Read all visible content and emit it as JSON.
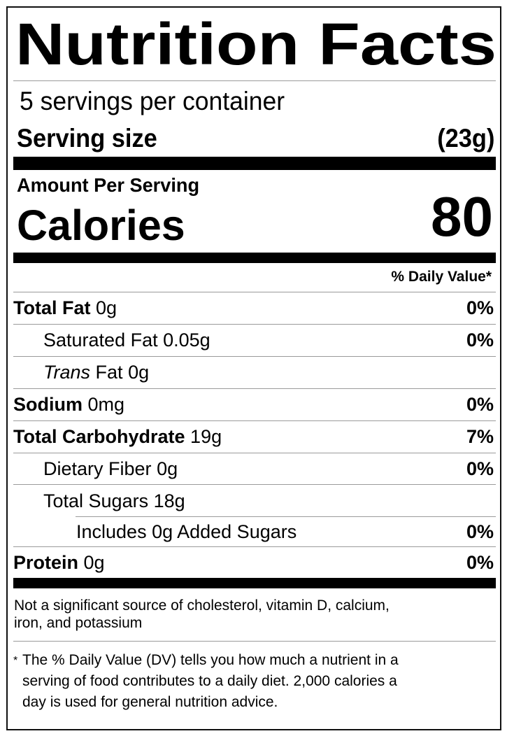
{
  "title": "Nutrition Facts",
  "servings_per_container": "5 servings per container",
  "serving_size": {
    "label": "Serving size",
    "value": "(23g)"
  },
  "amount_per_serving": "Amount Per Serving",
  "calories": {
    "label": "Calories",
    "value": "80"
  },
  "daily_value_header": "% Daily Value*",
  "nutrients": [
    {
      "name": "Total Fat",
      "amount": "0g",
      "dv": "0%"
    },
    {
      "name": "Saturated Fat",
      "amount": "0.05g",
      "dv": "0%"
    },
    {
      "name": "Trans",
      "name_suffix": "Fat",
      "amount": "0g",
      "dv": ""
    },
    {
      "name": "Sodium",
      "amount": "0mg",
      "dv": "0%"
    },
    {
      "name": "Total Carbohydrate",
      "amount": "19g",
      "dv": "7%"
    },
    {
      "name": "Dietary Fiber",
      "amount": "0g",
      "dv": "0%"
    },
    {
      "name": "Total Sugars",
      "amount": "18g",
      "dv": ""
    },
    {
      "name": "Includes 0g Added Sugars",
      "amount": "",
      "dv": "0%"
    },
    {
      "name": "Protein",
      "amount": "0g",
      "dv": "0%"
    }
  ],
  "not_significant": [
    "Not a significant source of cholesterol, vitamin D, calcium,",
    "iron, and potassium"
  ],
  "footnote_marker": "*",
  "footnote": [
    "The % Daily Value (DV) tells you how much a nutrient in a",
    "serving of food contributes to a daily diet. 2,000 calories a",
    "day is used for general nutrition advice."
  ]
}
